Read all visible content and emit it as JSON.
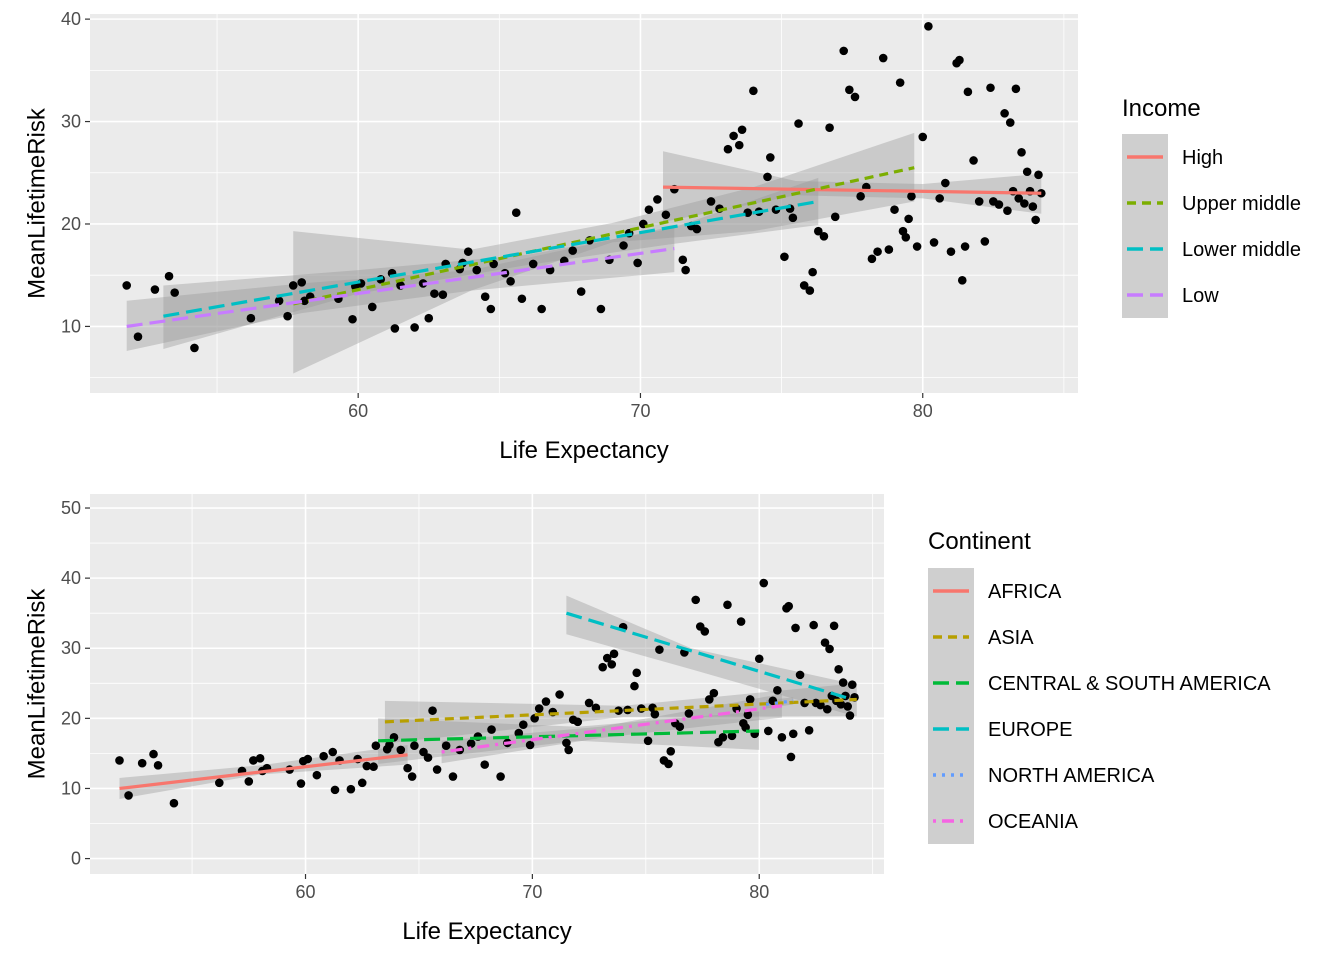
{
  "chart_data": [
    {
      "type": "scatter",
      "xlabel": "Life Expectancy",
      "ylabel": "MeanLifetimeRisk",
      "xlim": [
        50.5,
        85.5
      ],
      "ylim": [
        3.5,
        40.5
      ],
      "x_ticks": [
        60,
        70,
        80
      ],
      "y_ticks": [
        10,
        20,
        30,
        40
      ],
      "grid": true,
      "legend": {
        "title": "Income",
        "placement": "right",
        "entries": [
          {
            "label": "High",
            "color": "#F8766D",
            "dash": "solid"
          },
          {
            "label": "Upper middle",
            "color": "#7CAE00",
            "dash": "dashed"
          },
          {
            "label": "Lower middle",
            "color": "#00BFC4",
            "dash": "longdash"
          },
          {
            "label": "Low",
            "color": "#C77CFF",
            "dash": "longdash"
          }
        ]
      },
      "series": [
        {
          "name": "High",
          "color": "#F8766D",
          "dash": "solid",
          "fit": [
            [
              70.8,
              23.6
            ],
            [
              84.2,
              23.0
            ]
          ],
          "band_upper": [
            [
              70.8,
              27.1
            ],
            [
              75.5,
              24.2
            ],
            [
              80,
              23.9
            ],
            [
              84.2,
              24.9
            ]
          ],
          "band_lower": [
            [
              70.8,
              20.2
            ],
            [
              75.5,
              22.8
            ],
            [
              80,
              22.5
            ],
            [
              84.2,
              21.0
            ]
          ]
        },
        {
          "name": "Upper middle",
          "color": "#7CAE00",
          "dash": "dashed",
          "fit": [
            [
              57.7,
              12.2
            ],
            [
              79.7,
              25.5
            ]
          ],
          "band_upper": [
            [
              57.7,
              19.3
            ],
            [
              64,
              17.5
            ],
            [
              69,
              20.1
            ],
            [
              74,
              23.6
            ],
            [
              79.7,
              28.9
            ]
          ],
          "band_lower": [
            [
              57.7,
              5.4
            ],
            [
              64,
              13.5
            ],
            [
              69,
              18.2
            ],
            [
              74,
              19.3
            ],
            [
              79.7,
              22.2
            ]
          ]
        },
        {
          "name": "Lower middle",
          "color": "#00BFC4",
          "dash": "longdash",
          "fit": [
            [
              53.1,
              11.0
            ],
            [
              76.3,
              22.2
            ]
          ],
          "band_upper": [
            [
              53.1,
              14.0
            ],
            [
              60,
              15.5
            ],
            [
              66,
              17.0
            ],
            [
              71,
              19.5
            ],
            [
              76.3,
              24.5
            ]
          ],
          "band_lower": [
            [
              53.1,
              7.8
            ],
            [
              60,
              13.2
            ],
            [
              66,
              16.0
            ],
            [
              71,
              18.0
            ],
            [
              76.3,
              19.9
            ]
          ]
        },
        {
          "name": "Low",
          "color": "#C77CFF",
          "dash": "longdash",
          "fit": [
            [
              51.8,
              10.0
            ],
            [
              71.2,
              17.6
            ]
          ],
          "band_upper": [
            [
              51.8,
              12.5
            ],
            [
              58,
              14.2
            ],
            [
              64,
              15.5
            ],
            [
              71.2,
              19.8
            ]
          ],
          "band_lower": [
            [
              51.8,
              7.6
            ],
            [
              58,
              11.3
            ],
            [
              64,
              13.5
            ],
            [
              71.2,
              15.3
            ]
          ]
        }
      ]
    },
    {
      "type": "scatter",
      "xlabel": "Life Expectancy",
      "ylabel": "MeanLifetimeRisk",
      "xlim": [
        50.5,
        85.5
      ],
      "ylim": [
        -2.2,
        52
      ],
      "x_ticks": [
        60,
        70,
        80
      ],
      "y_ticks": [
        0,
        10,
        20,
        30,
        40,
        50
      ],
      "grid": true,
      "legend": {
        "title": "Continent",
        "placement": "right",
        "entries": [
          {
            "label": "AFRICA",
            "color": "#F8766D",
            "dash": "solid"
          },
          {
            "label": "ASIA",
            "color": "#B79F00",
            "dash": "dashed"
          },
          {
            "label": "CENTRAL & SOUTH AMERICA",
            "color": "#00BA38",
            "dash": "longdash"
          },
          {
            "label": "EUROPE",
            "color": "#00BFC4",
            "dash": "longdash"
          },
          {
            "label": "NORTH AMERICA",
            "color": "#619CFF",
            "dash": "dotted"
          },
          {
            "label": "OCEANIA",
            "color": "#F564E3",
            "dash": "dotdash"
          }
        ]
      },
      "series": [
        {
          "name": "AFRICA",
          "color": "#F8766D",
          "dash": "solid",
          "fit": [
            [
              51.8,
              10.0
            ],
            [
              64.5,
              14.8
            ]
          ],
          "band_upper": [
            [
              51.8,
              11.5
            ],
            [
              58,
              13.3
            ],
            [
              64.5,
              16.2
            ]
          ],
          "band_lower": [
            [
              51.8,
              8.5
            ],
            [
              58,
              12.0
            ],
            [
              64.5,
              13.4
            ]
          ]
        },
        {
          "name": "ASIA",
          "color": "#B79F00",
          "dash": "dashed",
          "fit": [
            [
              63.5,
              19.5
            ],
            [
              84.3,
              22.7
            ]
          ],
          "band_upper": [
            [
              63.5,
              22.5
            ],
            [
              74,
              21.8
            ],
            [
              84.3,
              25.0
            ]
          ],
          "band_lower": [
            [
              63.5,
              16.4
            ],
            [
              74,
              20.2
            ],
            [
              84.3,
              20.3
            ]
          ]
        },
        {
          "name": "CENTRAL & SOUTH AMERICA",
          "color": "#00BA38",
          "dash": "longdash",
          "fit": [
            [
              63.2,
              16.8
            ],
            [
              80,
              18.2
            ]
          ],
          "band_upper": [
            [
              63.2,
              20.0
            ],
            [
              72,
              18.8
            ],
            [
              80,
              21.0
            ]
          ],
          "band_lower": [
            [
              63.2,
              13.5
            ],
            [
              72,
              16.8
            ],
            [
              80,
              15.5
            ]
          ]
        },
        {
          "name": "EUROPE",
          "color": "#00BFC4",
          "dash": "longdash",
          "fit": [
            [
              71.5,
              35.0
            ],
            [
              84.0,
              22.8
            ]
          ],
          "band_upper": [
            [
              71.5,
              37.5
            ],
            [
              77,
              30.0
            ],
            [
              84.0,
              25.0
            ]
          ],
          "band_lower": [
            [
              71.5,
              32.0
            ],
            [
              77,
              27.0
            ],
            [
              84.0,
              20.5
            ]
          ]
        },
        {
          "name": "NORTH AMERICA",
          "color": "#619CFF",
          "dash": "dotted",
          "fit": [
            [
              80.3,
              22.0
            ],
            [
              81.5,
              22.5
            ]
          ],
          "band_upper": [
            [
              80.3,
              22.6
            ],
            [
              81.5,
              23.0
            ]
          ],
          "band_lower": [
            [
              80.3,
              21.4
            ],
            [
              81.5,
              22.0
            ]
          ]
        },
        {
          "name": "OCEANIA",
          "color": "#F564E3",
          "dash": "dotdash",
          "fit": [
            [
              66.0,
              15.2
            ],
            [
              81.0,
              21.8
            ]
          ],
          "band_upper": [
            [
              66.0,
              16.8
            ],
            [
              73,
              18.8
            ],
            [
              81.0,
              23.5
            ]
          ],
          "band_lower": [
            [
              66.0,
              13.6
            ],
            [
              73,
              17.2
            ],
            [
              81.0,
              20.1
            ]
          ]
        }
      ]
    }
  ],
  "points": [
    [
      51.8,
      14.0
    ],
    [
      52.2,
      9.0
    ],
    [
      52.8,
      13.6
    ],
    [
      53.3,
      14.9
    ],
    [
      53.5,
      13.3
    ],
    [
      54.2,
      7.9
    ],
    [
      56.2,
      10.8
    ],
    [
      57.2,
      12.5
    ],
    [
      57.5,
      11.0
    ],
    [
      57.7,
      14.0
    ],
    [
      58.0,
      14.3
    ],
    [
      58.1,
      12.5
    ],
    [
      58.3,
      12.9
    ],
    [
      59.3,
      12.7
    ],
    [
      59.8,
      10.7
    ],
    [
      59.9,
      13.9
    ],
    [
      60.1,
      14.2
    ],
    [
      60.5,
      11.9
    ],
    [
      60.8,
      14.6
    ],
    [
      61.2,
      15.2
    ],
    [
      61.3,
      9.8
    ],
    [
      61.5,
      14.0
    ],
    [
      62.0,
      9.9
    ],
    [
      62.3,
      14.2
    ],
    [
      62.5,
      10.8
    ],
    [
      62.7,
      13.2
    ],
    [
      63.0,
      13.1
    ],
    [
      63.1,
      16.1
    ],
    [
      63.6,
      15.6
    ],
    [
      63.7,
      16.2
    ],
    [
      63.9,
      17.3
    ],
    [
      64.2,
      15.5
    ],
    [
      64.5,
      12.9
    ],
    [
      64.7,
      11.7
    ],
    [
      64.8,
      16.1
    ],
    [
      65.2,
      15.2
    ],
    [
      65.4,
      14.4
    ],
    [
      65.6,
      21.1
    ],
    [
      65.8,
      12.7
    ],
    [
      66.2,
      16.1
    ],
    [
      66.5,
      11.7
    ],
    [
      66.8,
      15.5
    ],
    [
      67.3,
      16.4
    ],
    [
      67.6,
      17.4
    ],
    [
      67.9,
      13.4
    ],
    [
      68.2,
      18.4
    ],
    [
      68.6,
      11.7
    ],
    [
      68.9,
      16.5
    ],
    [
      69.4,
      17.9
    ],
    [
      69.6,
      19.1
    ],
    [
      69.9,
      16.2
    ],
    [
      70.1,
      20.0
    ],
    [
      70.3,
      21.4
    ],
    [
      70.6,
      22.4
    ],
    [
      70.9,
      20.9
    ],
    [
      71.2,
      23.4
    ],
    [
      71.5,
      16.5
    ],
    [
      71.6,
      15.5
    ],
    [
      71.8,
      19.8
    ],
    [
      72.0,
      19.5
    ],
    [
      72.5,
      22.2
    ],
    [
      72.8,
      21.5
    ],
    [
      73.1,
      27.3
    ],
    [
      73.3,
      28.6
    ],
    [
      73.5,
      27.7
    ],
    [
      73.6,
      29.2
    ],
    [
      73.8,
      21.1
    ],
    [
      74.0,
      33.0
    ],
    [
      74.2,
      21.2
    ],
    [
      74.5,
      24.6
    ],
    [
      74.6,
      26.5
    ],
    [
      74.8,
      21.4
    ],
    [
      75.1,
      16.8
    ],
    [
      75.3,
      21.5
    ],
    [
      75.4,
      20.6
    ],
    [
      75.6,
      29.8
    ],
    [
      75.8,
      14.0
    ],
    [
      76.0,
      13.5
    ],
    [
      76.1,
      15.3
    ],
    [
      76.3,
      19.3
    ],
    [
      76.5,
      18.8
    ],
    [
      76.7,
      29.4
    ],
    [
      76.9,
      20.7
    ],
    [
      77.2,
      36.9
    ],
    [
      77.4,
      33.1
    ],
    [
      77.6,
      32.4
    ],
    [
      77.8,
      22.7
    ],
    [
      78.0,
      23.6
    ],
    [
      78.2,
      16.6
    ],
    [
      78.4,
      17.3
    ],
    [
      78.6,
      36.2
    ],
    [
      78.8,
      17.5
    ],
    [
      79.0,
      21.4
    ],
    [
      79.2,
      33.8
    ],
    [
      79.3,
      19.3
    ],
    [
      79.4,
      18.7
    ],
    [
      79.5,
      20.5
    ],
    [
      79.6,
      22.7
    ],
    [
      79.8,
      17.8
    ],
    [
      80.0,
      28.5
    ],
    [
      80.2,
      39.3
    ],
    [
      80.4,
      18.2
    ],
    [
      80.6,
      22.5
    ],
    [
      80.8,
      24.0
    ],
    [
      81.0,
      17.3
    ],
    [
      81.2,
      35.7
    ],
    [
      81.3,
      36.0
    ],
    [
      81.4,
      14.5
    ],
    [
      81.5,
      17.8
    ],
    [
      81.6,
      32.9
    ],
    [
      81.8,
      26.2
    ],
    [
      82.0,
      22.2
    ],
    [
      82.2,
      18.3
    ],
    [
      82.4,
      33.3
    ],
    [
      82.5,
      22.2
    ],
    [
      82.7,
      21.9
    ],
    [
      82.9,
      30.8
    ],
    [
      83.0,
      21.3
    ],
    [
      83.1,
      29.9
    ],
    [
      83.2,
      23.2
    ],
    [
      83.3,
      33.2
    ],
    [
      83.4,
      22.5
    ],
    [
      83.5,
      27.0
    ],
    [
      83.6,
      22.0
    ],
    [
      83.7,
      25.1
    ],
    [
      83.8,
      23.2
    ],
    [
      83.9,
      21.7
    ],
    [
      84.0,
      20.4
    ],
    [
      84.2,
      23.0
    ],
    [
      84.1,
      24.8
    ]
  ]
}
